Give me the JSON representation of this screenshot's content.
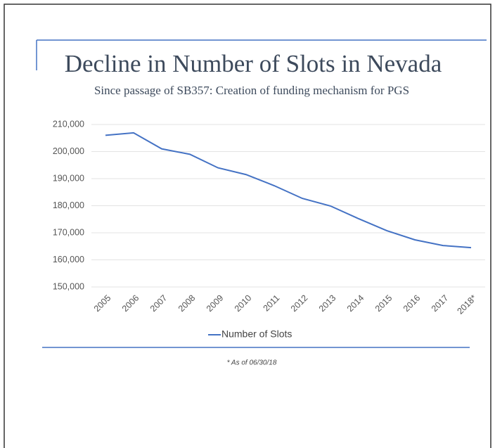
{
  "chart_data": {
    "type": "line",
    "title": "Decline in Number of Slots in Nevada",
    "subtitle": "Since passage of SB357: Creation of funding mechanism for PGS",
    "footnote": "* As of 06/30/18",
    "categories": [
      "2005",
      "2006",
      "2007",
      "2008",
      "2009",
      "2010",
      "2011",
      "2012",
      "2013",
      "2014",
      "2015",
      "2016",
      "2017",
      "2018*"
    ],
    "series": [
      {
        "name": "Number of Slots",
        "color": "#4472c4",
        "values": [
          206000,
          206900,
          201000,
          199000,
          194000,
          191500,
          187400,
          182700,
          179900,
          175200,
          170800,
          167400,
          165300,
          164500
        ]
      }
    ],
    "ylim": [
      150000,
      210000
    ],
    "yticks": [
      {
        "value": 150000,
        "label": "150,000"
      },
      {
        "value": 160000,
        "label": "160,000"
      },
      {
        "value": 170000,
        "label": "170,000"
      },
      {
        "value": 180000,
        "label": "180,000"
      },
      {
        "value": 190000,
        "label": "190,000"
      },
      {
        "value": 200000,
        "label": "200,000"
      },
      {
        "value": 210000,
        "label": "210,000"
      }
    ],
    "grid": true,
    "legend": "bottom"
  }
}
